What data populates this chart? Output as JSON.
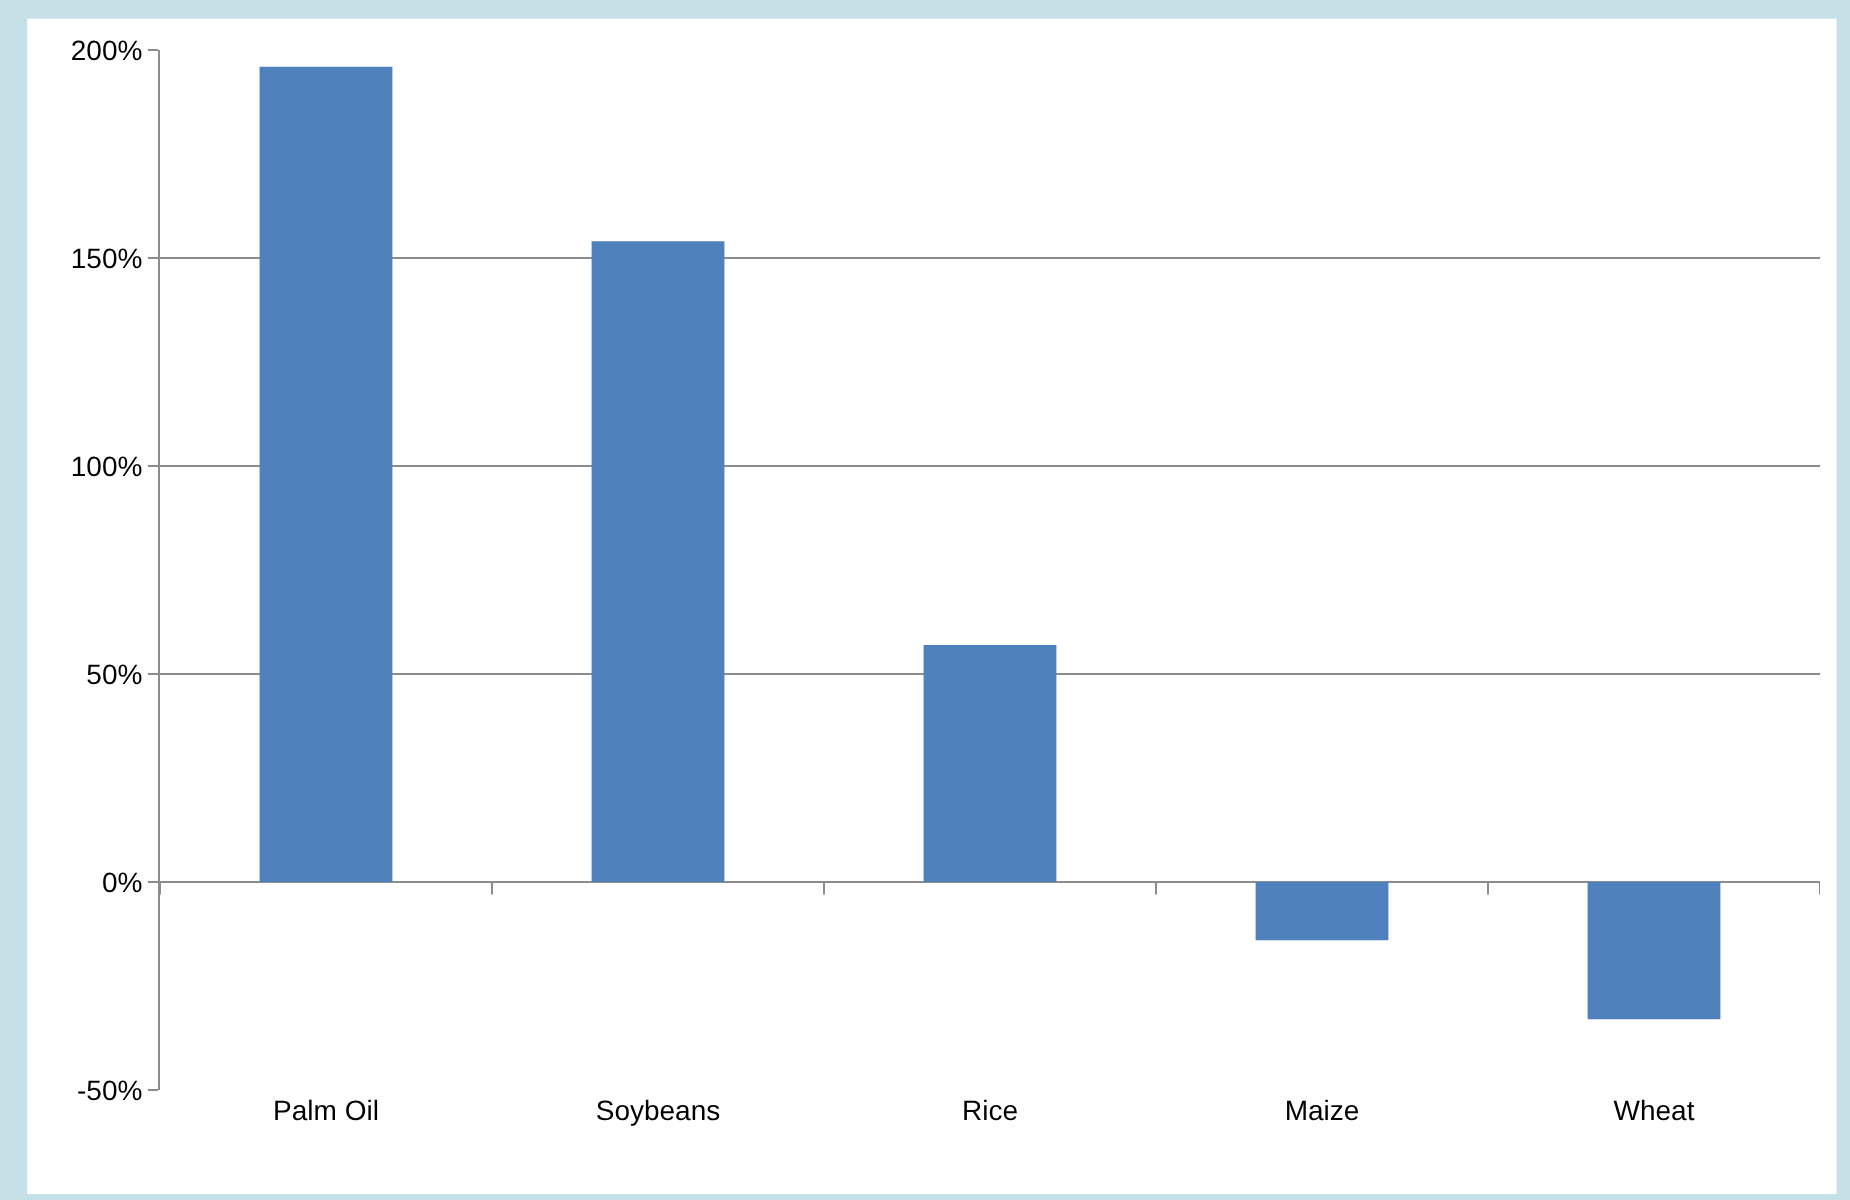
{
  "chart_data": {
    "type": "bar",
    "categories": [
      "Palm Oil",
      "Soybeans",
      "Rice",
      "Maize",
      "Wheat"
    ],
    "values": [
      196,
      154,
      57,
      -14,
      -33
    ],
    "color": "#4f81bd",
    "ylim": [
      -50,
      200
    ],
    "yticks": [
      {
        "value": -50,
        "label": "-50%"
      },
      {
        "value": 0,
        "label": "0%"
      },
      {
        "value": 50,
        "label": "50%"
      },
      {
        "value": 100,
        "label": "100%"
      },
      {
        "value": 150,
        "label": "150%"
      },
      {
        "value": 200,
        "label": "200%"
      }
    ],
    "grid": "y"
  }
}
